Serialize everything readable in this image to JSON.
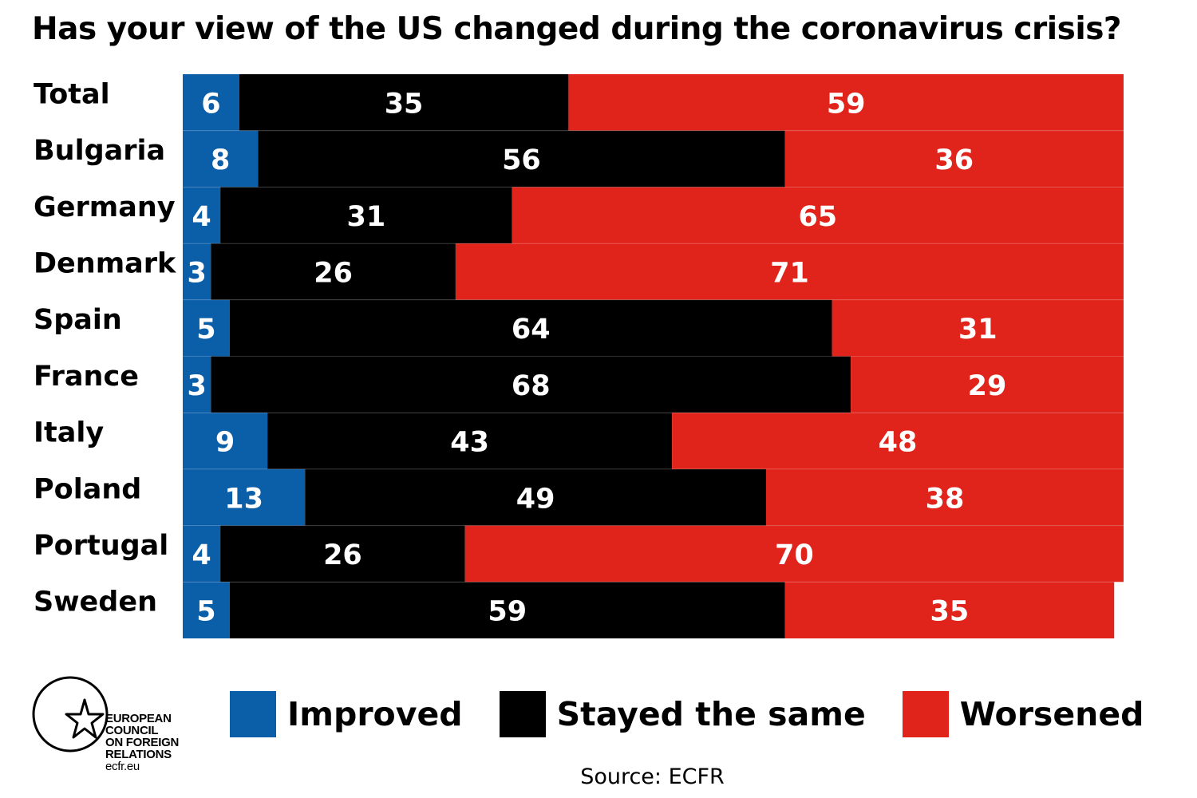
{
  "chart_data": {
    "type": "bar",
    "orientation": "horizontal",
    "stacked": true,
    "title": "Has your view of the US changed during the coronavirus crisis?",
    "categories": [
      "Total",
      "Bulgaria",
      "Germany",
      "Denmark",
      "Spain",
      "France",
      "Italy",
      "Poland",
      "Portugal",
      "Sweden"
    ],
    "series": [
      {
        "name": "Improved",
        "color": "#0b5ea8",
        "values": [
          6,
          8,
          4,
          3,
          5,
          3,
          9,
          13,
          4,
          5
        ]
      },
      {
        "name": "Stayed the same",
        "color": "#000000",
        "values": [
          35,
          56,
          31,
          26,
          64,
          68,
          43,
          49,
          26,
          59
        ]
      },
      {
        "name": "Worsened",
        "color": "#e0241c",
        "values": [
          59,
          36,
          65,
          71,
          31,
          29,
          48,
          38,
          70,
          35
        ]
      }
    ],
    "xlim": [
      0,
      100
    ],
    "grid": false,
    "legend_position": "bottom"
  },
  "legend": {
    "improved": "Improved",
    "same": "Stayed the same",
    "worsened": "Worsened"
  },
  "source": "Source: ECFR",
  "logo": {
    "line1": "EUROPEAN",
    "line2": "COUNCIL",
    "line3": "ON FOREIGN",
    "line4": "RELATIONS",
    "url": "ecfr.eu"
  },
  "colors": {
    "improved": "#0b5ea8",
    "same": "#000000",
    "worsened": "#e0241c"
  }
}
